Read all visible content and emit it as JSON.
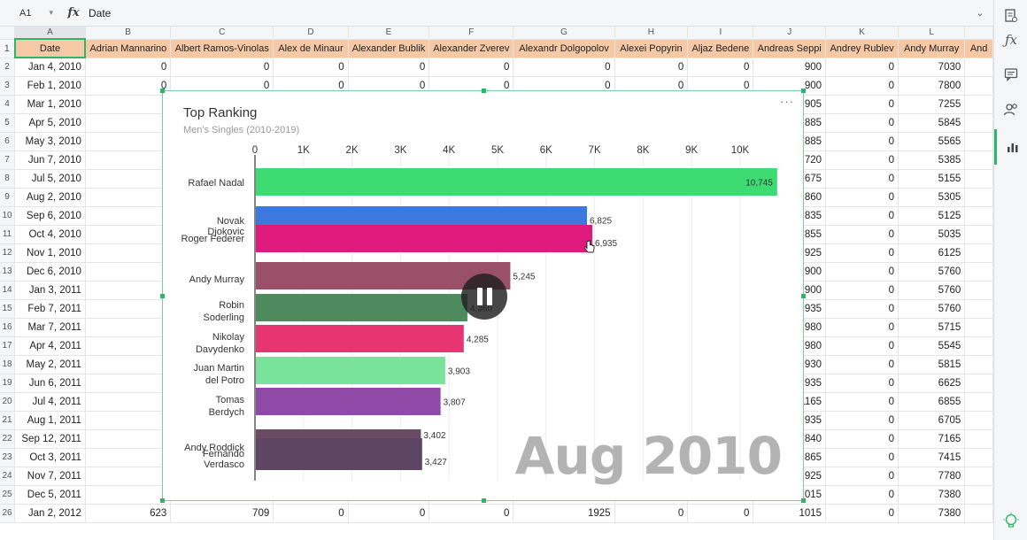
{
  "formula_bar": {
    "cell_ref": "A1",
    "fx_label": "fx",
    "value": "Date"
  },
  "columns": [
    "",
    "A",
    "B",
    "C",
    "D",
    "E",
    "F",
    "G",
    "H",
    "I",
    "J",
    "K",
    "L",
    ""
  ],
  "header_row": [
    "Date",
    "Adrian Mannarino",
    "Albert Ramos-Vinolas",
    "Alex de Minaur",
    "Alexander Bublik",
    "Alexander Zverev",
    "Alexandr Dolgopolov",
    "Alexei Popyrin",
    "Aljaz Bedene",
    "Andreas Seppi",
    "Andrey Rublev",
    "Andy Murray",
    "And"
  ],
  "rows": [
    {
      "n": "2",
      "date": "Jan 4, 2010",
      "vals": [
        "0",
        "0",
        "0",
        "0",
        "0",
        "0",
        "0",
        "0",
        "900",
        "0",
        "7030"
      ]
    },
    {
      "n": "3",
      "date": "Feb 1, 2010",
      "vals": [
        "0",
        "0",
        "0",
        "0",
        "0",
        "0",
        "0",
        "0",
        "900",
        "0",
        "7800"
      ]
    },
    {
      "n": "4",
      "date": "Mar 1, 2010",
      "vals": [
        "",
        "",
        "",
        "",
        "",
        "",
        "",
        "",
        "905",
        "0",
        "7255"
      ]
    },
    {
      "n": "5",
      "date": "Apr 5, 2010",
      "vals": [
        "",
        "",
        "",
        "",
        "",
        "",
        "",
        "",
        "885",
        "0",
        "5845"
      ]
    },
    {
      "n": "6",
      "date": "May 3, 2010",
      "vals": [
        "",
        "",
        "",
        "",
        "",
        "",
        "",
        "",
        "885",
        "0",
        "5565"
      ]
    },
    {
      "n": "7",
      "date": "Jun 7, 2010",
      "vals": [
        "",
        "",
        "",
        "",
        "",
        "",
        "",
        "",
        "720",
        "0",
        "5385"
      ]
    },
    {
      "n": "8",
      "date": "Jul 5, 2010",
      "vals": [
        "",
        "",
        "",
        "",
        "",
        "",
        "",
        "",
        "675",
        "0",
        "5155"
      ]
    },
    {
      "n": "9",
      "date": "Aug 2, 2010",
      "vals": [
        "",
        "",
        "",
        "",
        "",
        "",
        "",
        "",
        "860",
        "0",
        "5305"
      ]
    },
    {
      "n": "10",
      "date": "Sep 6, 2010",
      "vals": [
        "",
        "",
        "",
        "",
        "",
        "",
        "",
        "",
        "835",
        "0",
        "5125"
      ]
    },
    {
      "n": "11",
      "date": "Oct 4, 2010",
      "vals": [
        "",
        "",
        "",
        "",
        "",
        "",
        "",
        "",
        "855",
        "0",
        "5035"
      ]
    },
    {
      "n": "12",
      "date": "Nov 1, 2010",
      "vals": [
        "",
        "",
        "",
        "",
        "",
        "",
        "",
        "",
        "925",
        "0",
        "6125"
      ]
    },
    {
      "n": "13",
      "date": "Dec 6, 2010",
      "vals": [
        "",
        "",
        "",
        "",
        "",
        "",
        "",
        "",
        "900",
        "0",
        "5760"
      ]
    },
    {
      "n": "14",
      "date": "Jan 3, 2011",
      "vals": [
        "",
        "",
        "",
        "",
        "",
        "",
        "",
        "",
        "900",
        "0",
        "5760"
      ]
    },
    {
      "n": "15",
      "date": "Feb 7, 2011",
      "vals": [
        "",
        "",
        "",
        "",
        "",
        "",
        "",
        "",
        "935",
        "0",
        "5760"
      ]
    },
    {
      "n": "16",
      "date": "Mar 7, 2011",
      "vals": [
        "",
        "",
        "",
        "",
        "",
        "",
        "",
        "",
        "980",
        "0",
        "5715"
      ]
    },
    {
      "n": "17",
      "date": "Apr 4, 2011",
      "vals": [
        "",
        "",
        "",
        "",
        "",
        "",
        "",
        "",
        "980",
        "0",
        "5545"
      ]
    },
    {
      "n": "18",
      "date": "May 2, 2011",
      "vals": [
        "",
        "",
        "",
        "",
        "",
        "",
        "",
        "",
        "930",
        "0",
        "5815"
      ]
    },
    {
      "n": "19",
      "date": "Jun 6, 2011",
      "vals": [
        "",
        "",
        "",
        "",
        "",
        "",
        "",
        "",
        "935",
        "0",
        "6625"
      ]
    },
    {
      "n": "20",
      "date": "Jul 4, 2011",
      "vals": [
        "",
        "",
        "",
        "",
        "",
        "",
        "",
        "",
        "1165",
        "0",
        "6855"
      ]
    },
    {
      "n": "21",
      "date": "Aug 1, 2011",
      "vals": [
        "",
        "",
        "",
        "",
        "",
        "",
        "",
        "",
        "935",
        "0",
        "6705"
      ]
    },
    {
      "n": "22",
      "date": "Sep 12, 2011",
      "vals": [
        "",
        "",
        "",
        "",
        "",
        "",
        "",
        "",
        "840",
        "0",
        "7165"
      ]
    },
    {
      "n": "23",
      "date": "Oct 3, 2011",
      "vals": [
        "",
        "",
        "",
        "",
        "",
        "",
        "",
        "",
        "865",
        "0",
        "7415"
      ]
    },
    {
      "n": "24",
      "date": "Nov 7, 2011",
      "vals": [
        "",
        "",
        "",
        "",
        "",
        "",
        "",
        "",
        "925",
        "0",
        "7780"
      ]
    },
    {
      "n": "25",
      "date": "Dec 5, 2011",
      "vals": [
        "",
        "",
        "",
        "",
        "",
        "",
        "",
        "",
        "1015",
        "0",
        "7380"
      ]
    },
    {
      "n": "26",
      "date": "Jan 2, 2012",
      "vals": [
        "623",
        "709",
        "0",
        "0",
        "0",
        "1925",
        "0",
        "0",
        "1015",
        "0",
        "7380"
      ]
    }
  ],
  "chart": {
    "title": "Top Ranking",
    "subtitle": "Men's Singles (2010-2019)",
    "menu_glyph": "···",
    "period": "Aug 2010"
  },
  "chart_data": {
    "type": "bar",
    "orientation": "horizontal",
    "title": "Top Ranking",
    "subtitle": "Men's Singles (2010-2019)",
    "ticks": [
      "0",
      "1K",
      "2K",
      "3K",
      "4K",
      "5K",
      "6K",
      "7K",
      "8K",
      "9K",
      "10K"
    ],
    "xlim": [
      0,
      10900
    ],
    "bars": [
      {
        "label": [
          "Rafael Nadal"
        ],
        "value": 10745,
        "value_label": "10,745",
        "color": "#3ddc73"
      },
      {
        "label": [
          "Novak",
          "Djokovic"
        ],
        "value": 6825,
        "value_label": "6,825",
        "color": "#3b78e0"
      },
      {
        "label": [
          "Roger Federer"
        ],
        "value": 6935,
        "value_label": "6,935",
        "color": "#e0197d"
      },
      {
        "label": [
          "Andy Murray"
        ],
        "value": 5245,
        "value_label": "5,245",
        "color": "#9a5068"
      },
      {
        "label": [
          "Robin",
          "Soderling"
        ],
        "value": 4360,
        "value_label": "4,360",
        "color": "#4e8a5d"
      },
      {
        "label": [
          "Nikolay",
          "Davydenko"
        ],
        "value": 4285,
        "value_label": "4,285",
        "color": "#e63571"
      },
      {
        "label": [
          "Juan Martin",
          "del Potro"
        ],
        "value": 3903,
        "value_label": "3,903",
        "color": "#79e39b"
      },
      {
        "label": [
          "Tomas",
          "Berdych"
        ],
        "value": 3807,
        "value_label": "3,807",
        "color": "#8e4aa6"
      },
      {
        "label": [
          "Andy Roddick"
        ],
        "value": 3402,
        "value_label": "3,402",
        "color": "#6b4b63"
      },
      {
        "label": [
          "Fernando",
          "Verdasco"
        ],
        "value": 3427,
        "value_label": "3,427",
        "color": "#5c4662"
      }
    ]
  }
}
